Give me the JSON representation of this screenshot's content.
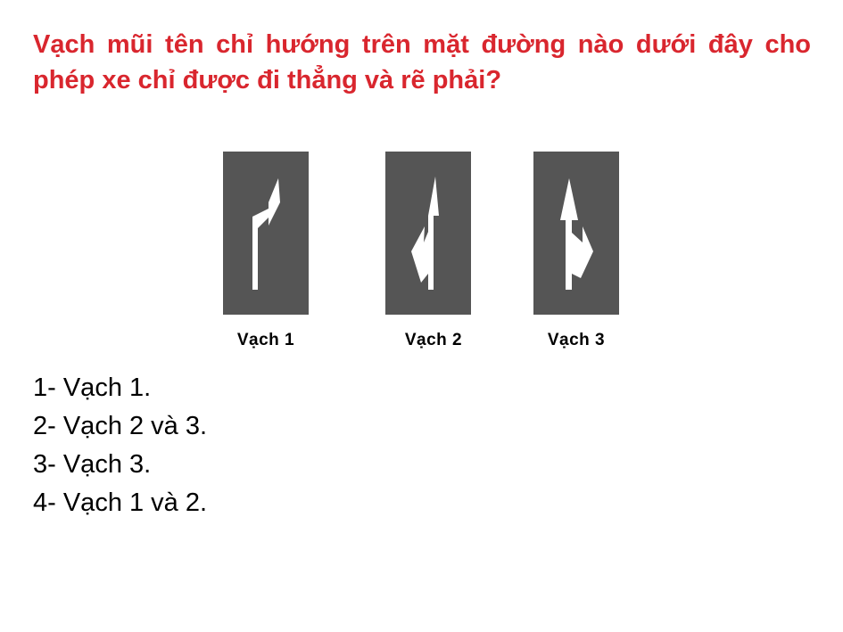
{
  "question": {
    "text": "Vạch mũi tên chỉ hướng trên mặt đường nào dưới đây cho phép xe chỉ được đi thẳng và rẽ phải?"
  },
  "signs": [
    {
      "label": "Vạch 1",
      "arrow_icon": "right-turn-arrow-icon"
    },
    {
      "label": "Vạch 2",
      "arrow_icon": "straight-and-left-arrow-icon"
    },
    {
      "label": "Vạch 3",
      "arrow_icon": "straight-and-right-arrow-icon"
    }
  ],
  "answers": [
    "1- Vạch 1.",
    "2- Vạch 2 và 3.",
    "3- Vạch 3.",
    "4- Vạch 1 và 2."
  ],
  "colors": {
    "question_text": "#d9262e",
    "sign_background": "#555555",
    "arrow": "#ffffff",
    "answer_text": "#000000"
  }
}
